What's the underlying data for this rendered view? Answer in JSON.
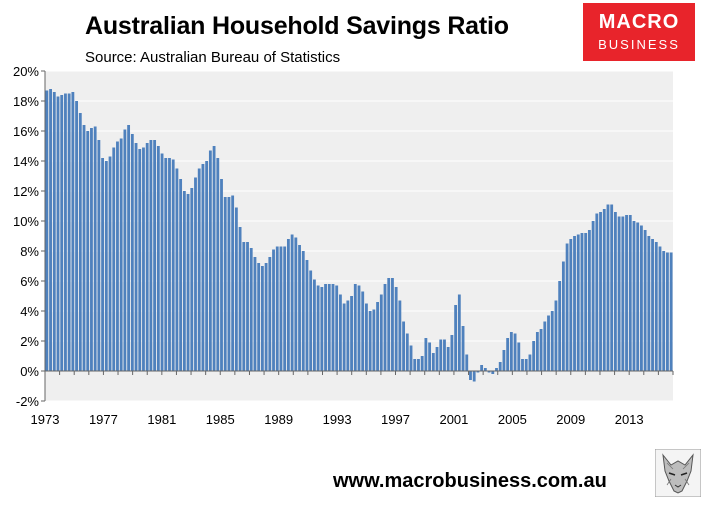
{
  "header": {
    "title": "Australian Household Savings Ratio",
    "subtitle": "Source: Australian Bureau of Statistics"
  },
  "logo": {
    "line1": "MACRO",
    "line2": "BUSINESS"
  },
  "footer": {
    "url": "www.macrobusiness.com.au"
  },
  "colors": {
    "bar": "#4f81bd",
    "plot_bg": "#efefef",
    "grid": "#ffffff",
    "logo_bg": "#e8242b"
  },
  "chart_data": {
    "type": "bar",
    "title": "Australian Household Savings Ratio",
    "subtitle": "Source: Australian Bureau of Statistics",
    "xlabel": "",
    "ylabel": "",
    "x_start": 1973,
    "x_end": 2016,
    "ylim": [
      -2,
      20
    ],
    "y_ticks": [
      -2,
      0,
      2,
      4,
      6,
      8,
      10,
      12,
      14,
      16,
      18,
      20
    ],
    "y_tick_labels": [
      "-2%",
      "0%",
      "2%",
      "4%",
      "6%",
      "8%",
      "10%",
      "12%",
      "14%",
      "16%",
      "18%",
      "20%"
    ],
    "x_tick_labels": [
      "1973",
      "1977",
      "1981",
      "1985",
      "1989",
      "1993",
      "1997",
      "2001",
      "2005",
      "2009",
      "2013"
    ],
    "grid": true,
    "legend": "none",
    "values": [
      18.7,
      18.8,
      18.6,
      18.3,
      18.4,
      18.5,
      18.5,
      18.6,
      18.0,
      17.2,
      16.4,
      16.0,
      16.2,
      16.3,
      15.4,
      14.2,
      14.0,
      14.3,
      14.9,
      15.3,
      15.5,
      16.1,
      16.4,
      15.8,
      15.2,
      14.8,
      14.9,
      15.2,
      15.4,
      15.4,
      15.0,
      14.5,
      14.2,
      14.2,
      14.1,
      13.5,
      12.8,
      12.0,
      11.8,
      12.2,
      12.9,
      13.5,
      13.8,
      14.0,
      14.7,
      15.0,
      14.2,
      12.8,
      11.6,
      11.6,
      11.7,
      10.9,
      9.6,
      8.6,
      8.6,
      8.2,
      7.6,
      7.2,
      7.0,
      7.2,
      7.6,
      8.1,
      8.3,
      8.3,
      8.3,
      8.8,
      9.1,
      8.9,
      8.4,
      8.0,
      7.4,
      6.7,
      6.1,
      5.7,
      5.6,
      5.8,
      5.8,
      5.8,
      5.7,
      5.1,
      4.5,
      4.7,
      5.0,
      5.8,
      5.7,
      5.3,
      4.5,
      4.0,
      4.1,
      4.6,
      5.1,
      5.8,
      6.2,
      6.2,
      5.6,
      4.7,
      3.3,
      2.5,
      1.7,
      0.8,
      0.8,
      1.0,
      2.2,
      1.9,
      1.2,
      1.6,
      2.1,
      2.1,
      1.6,
      2.4,
      4.4,
      5.1,
      3.0,
      1.1,
      -0.6,
      -0.7,
      -0.1,
      0.4,
      0.2,
      -0.1,
      -0.2,
      0.2,
      0.6,
      1.4,
      2.2,
      2.6,
      2.5,
      1.9,
      0.8,
      0.8,
      1.1,
      2.0,
      2.6,
      2.8,
      3.3,
      3.7,
      4.0,
      4.7,
      6.0,
      7.3,
      8.5,
      8.8,
      9.0,
      9.1,
      9.2,
      9.2,
      9.4,
      10.0,
      10.5,
      10.6,
      10.8,
      11.1,
      11.1,
      10.6,
      10.3,
      10.3,
      10.4,
      10.4,
      10.0,
      9.9,
      9.7,
      9.4,
      9.0,
      8.8,
      8.6,
      8.3,
      8.0,
      7.9,
      7.9
    ]
  }
}
